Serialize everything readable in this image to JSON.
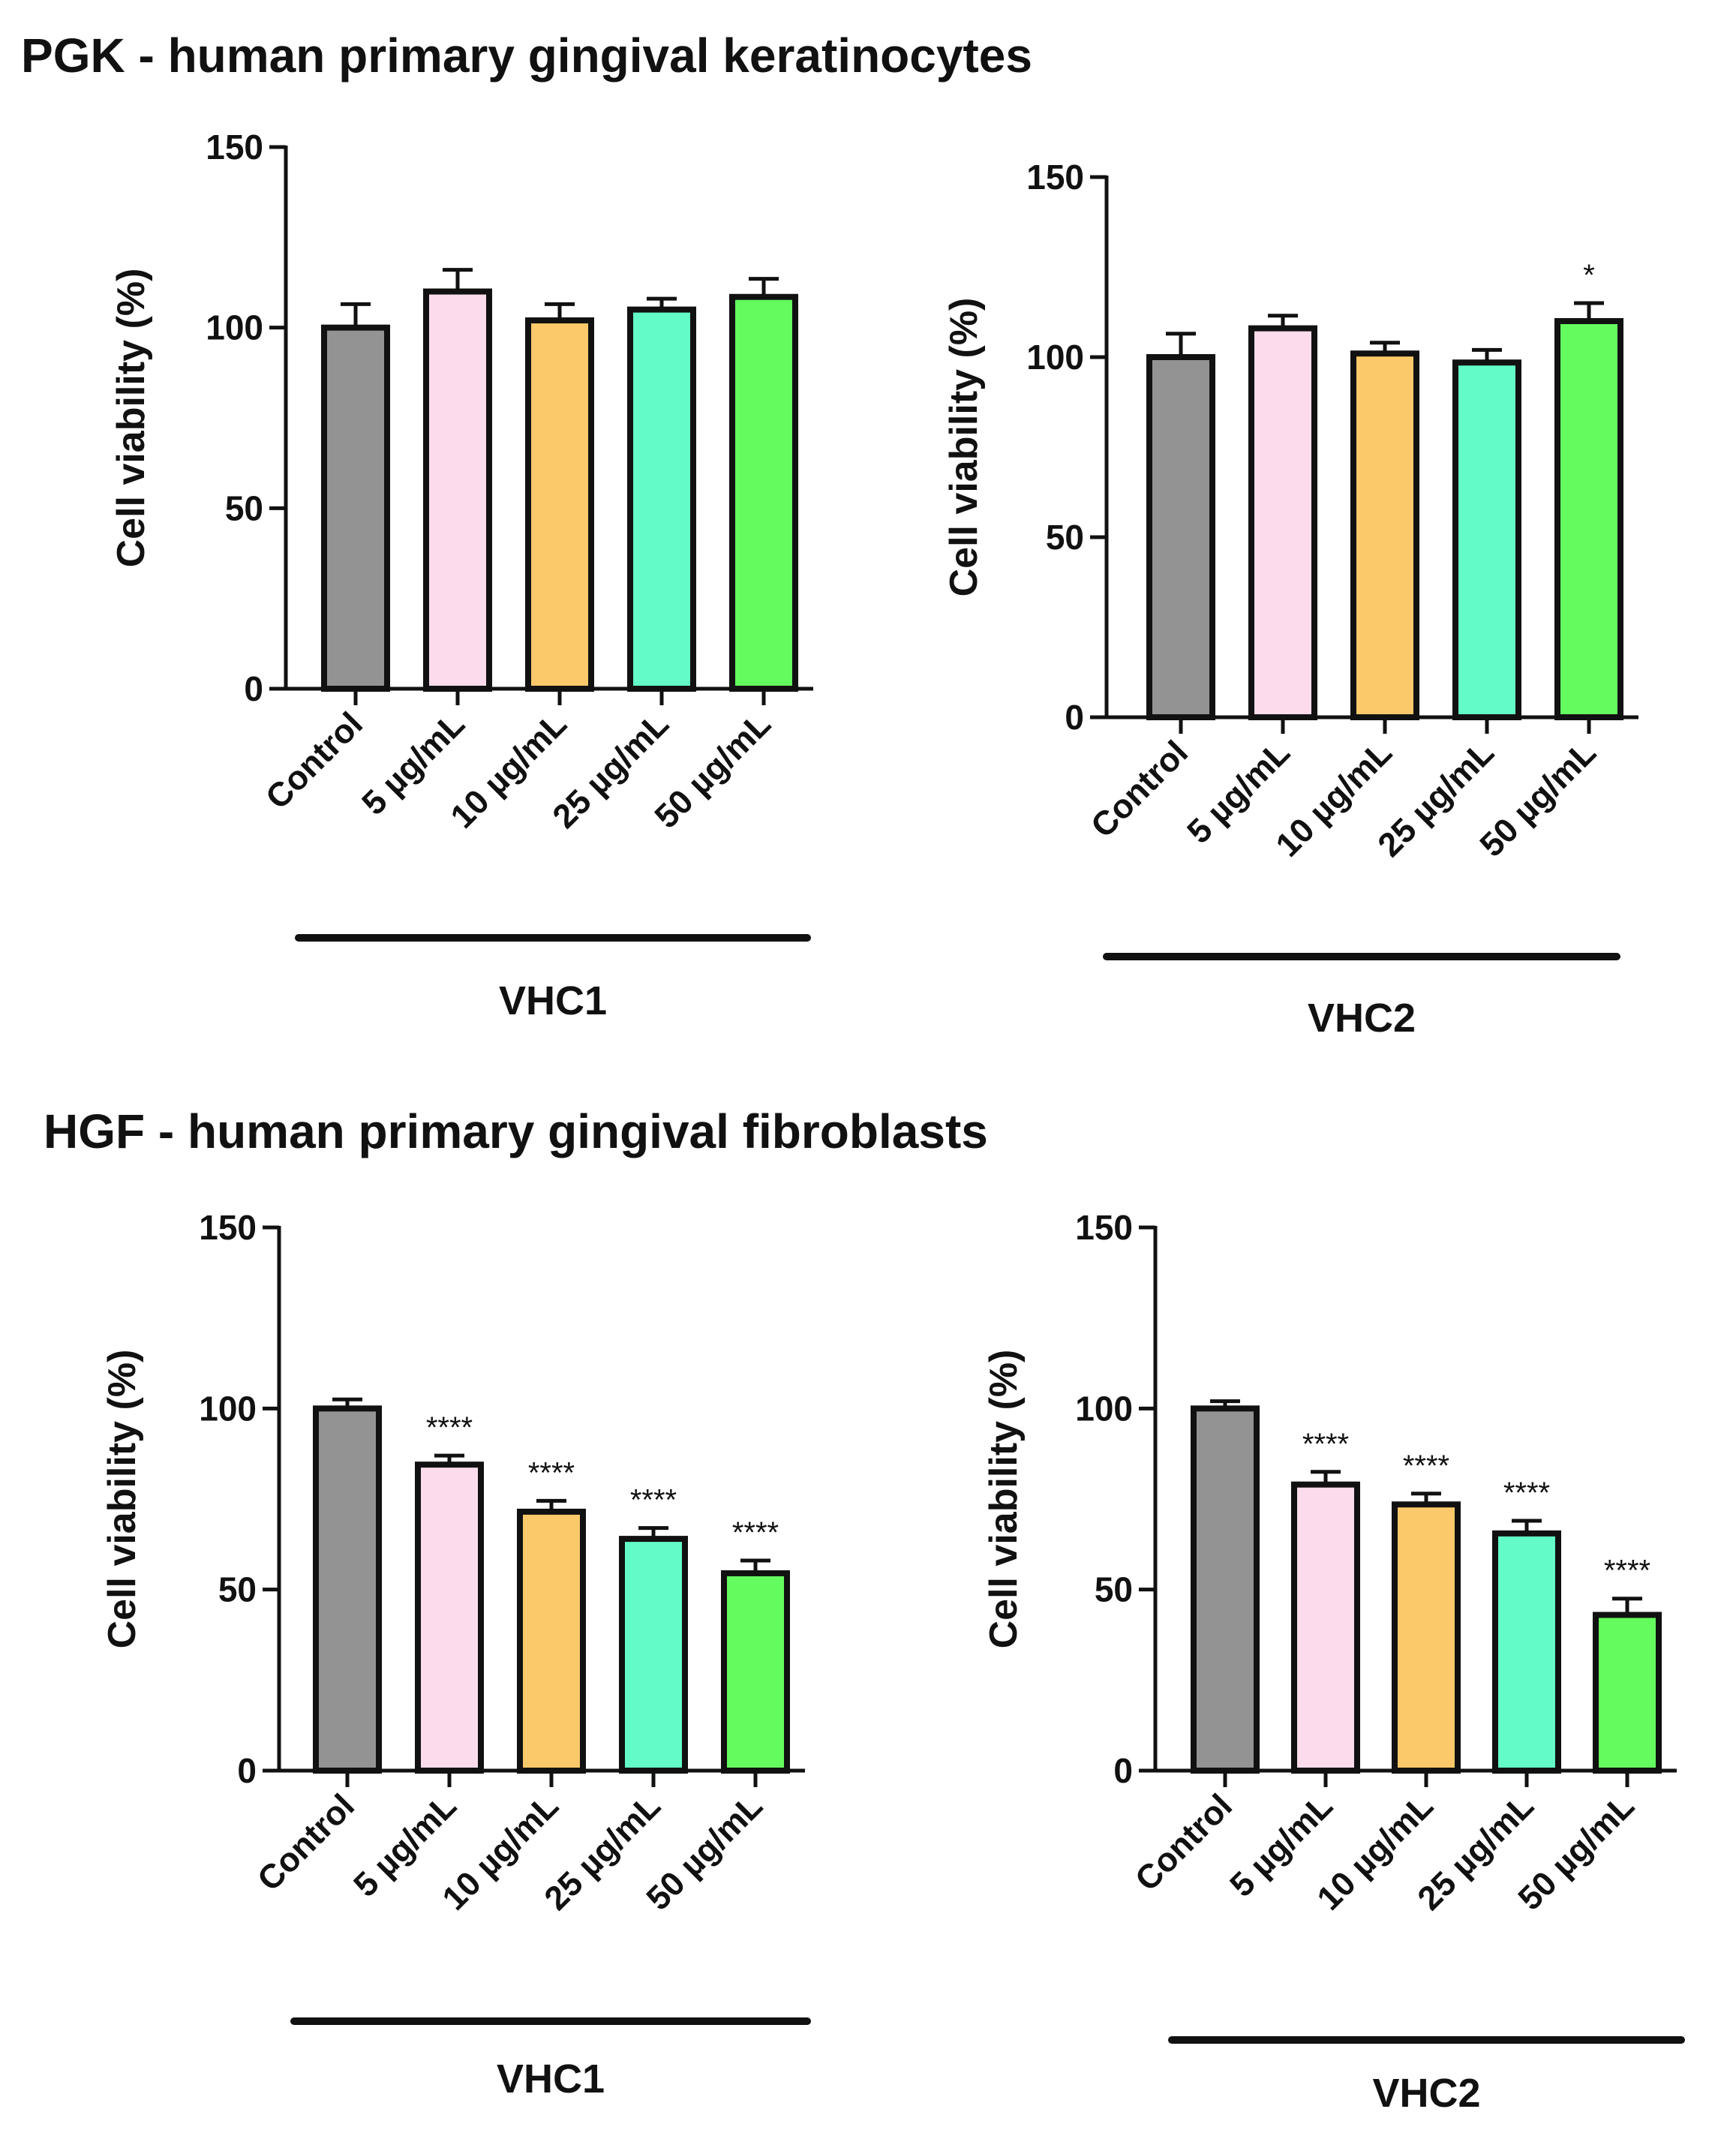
{
  "section_titles": {
    "pgk": "PGK - human primary gingival keratinocytes",
    "hgf": "HGF - human primary gingival fibroblasts"
  },
  "colors": {
    "axis": "#111111",
    "series": [
      "#939393",
      "#fcdcec",
      "#fcc96a",
      "#63fbc8",
      "#64fb5e"
    ]
  },
  "chart_data": [
    {
      "id": "pgk-vhc1",
      "type": "bar",
      "section": "PGK",
      "group_label": "VHC1",
      "ylabel": "Cell viability (%)",
      "ylim": [
        0,
        150
      ],
      "yticks": [
        0,
        50,
        100,
        150
      ],
      "categories": [
        "Control",
        "5 µg/mL",
        "10 µg/mL",
        "25 µg/mL",
        "50 µg/mL"
      ],
      "values": [
        100,
        110,
        102,
        105,
        108.5
      ],
      "errors": [
        6.5,
        6,
        4.5,
        3,
        5
      ],
      "significance": [
        "",
        "",
        "",
        "",
        ""
      ]
    },
    {
      "id": "pgk-vhc2",
      "type": "bar",
      "section": "PGK",
      "group_label": "VHC2",
      "ylabel": "Cell viability (%)",
      "ylim": [
        0,
        150
      ],
      "yticks": [
        0,
        50,
        100,
        150
      ],
      "categories": [
        "Control",
        "5 µg/mL",
        "10 µg/mL",
        "25 µg/mL",
        "50 µg/mL"
      ],
      "values": [
        100,
        108,
        101,
        98.5,
        110
      ],
      "errors": [
        6.5,
        3.5,
        3,
        3.5,
        5
      ],
      "significance": [
        "",
        "",
        "",
        "",
        "*"
      ]
    },
    {
      "id": "hgf-vhc1",
      "type": "bar",
      "section": "HGF",
      "group_label": "VHC1",
      "ylabel": "Cell viability (%)",
      "ylim": [
        0,
        150
      ],
      "yticks": [
        0,
        50,
        100,
        150
      ],
      "categories": [
        "Control",
        "5 µg/mL",
        "10 µg/mL",
        "25 µg/mL",
        "50 µg/mL"
      ],
      "values": [
        100,
        84.5,
        71.5,
        64,
        54.5
      ],
      "errors": [
        2.5,
        2.5,
        3,
        3,
        3.5
      ],
      "significance": [
        "",
        "****",
        "****",
        "****",
        "****"
      ]
    },
    {
      "id": "hgf-vhc2",
      "type": "bar",
      "section": "HGF",
      "group_label": "VHC2",
      "ylabel": "Cell viability (%)",
      "ylim": [
        0,
        150
      ],
      "yticks": [
        0,
        50,
        100,
        150
      ],
      "categories": [
        "Control",
        "5 µg/mL",
        "10 µg/mL",
        "25 µg/mL",
        "50 µg/mL"
      ],
      "values": [
        100,
        79,
        73.5,
        65.5,
        43
      ],
      "errors": [
        2,
        3.5,
        3,
        3.5,
        4.5
      ],
      "significance": [
        "",
        "****",
        "****",
        "****",
        "****"
      ]
    }
  ]
}
